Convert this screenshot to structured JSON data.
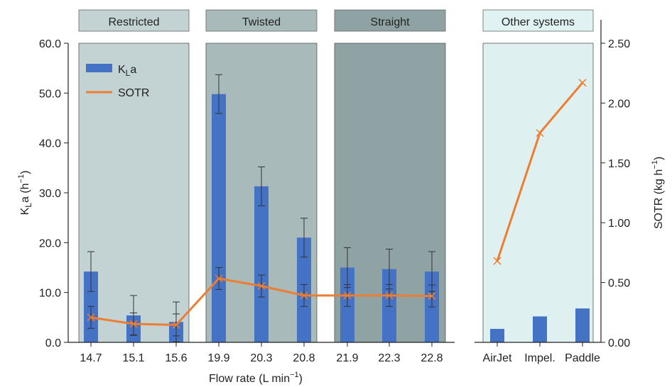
{
  "chart_data": {
    "type": "bar",
    "xlabel_main": "Flow rate",
    "xlabel_unit": "(L min",
    "xlabel_exp": "−1",
    "xlabel_close": ")",
    "ylabel_left_main": "K",
    "ylabel_left_sub": "L",
    "ylabel_left_rest": "a (h",
    "ylabel_left_exp": "−1",
    "ylabel_left_close": ")",
    "ylabel_right_main": "SOTR (kg h",
    "ylabel_right_exp": "−1",
    "ylabel_right_close": ")",
    "ylim_left": [
      0,
      60
    ],
    "ylim_right": [
      0,
      2.5
    ],
    "left_ticks": [
      "0.0",
      "10.0",
      "20.0",
      "30.0",
      "40.0",
      "50.0",
      "60.0"
    ],
    "right_ticks": [
      "0.00",
      "0.50",
      "1.00",
      "1.50",
      "2.00",
      "2.50"
    ],
    "legend": {
      "placement": "top-left",
      "kla_main": "K",
      "kla_sub": "L",
      "kla_rest": "a",
      "sotr": "SOTR"
    },
    "colors": {
      "bar": "#4472c4",
      "line": "#ed7d31",
      "restricted_bg": "#c3d3d3",
      "twisted_bg": "#a8baba",
      "straight_bg": "#8fa3a5",
      "other_bg": "#def0ef",
      "other_header": "#e0f2f1"
    },
    "groups": [
      {
        "label": "Restricted",
        "categories": [
          "14.7",
          "15.1",
          "15.6"
        ],
        "kla": [
          14.2,
          5.4,
          4.1
        ],
        "kla_err": [
          4.0,
          4.0,
          4.0
        ],
        "sotr_on_left_axis": [
          5.0,
          3.7,
          3.5
        ],
        "sotr_err_left_axis": [
          2.2,
          2.2,
          2.2
        ]
      },
      {
        "label": "Twisted",
        "categories": [
          "19.9",
          "20.3",
          "20.8"
        ],
        "kla": [
          49.8,
          31.3,
          21.0
        ],
        "kla_err": [
          3.9,
          3.9,
          3.9
        ],
        "sotr_on_left_axis": [
          12.8,
          11.3,
          9.4
        ],
        "sotr_err_left_axis": [
          2.2,
          2.2,
          2.2
        ]
      },
      {
        "label": "Straight",
        "categories": [
          "21.9",
          "22.3",
          "22.8"
        ],
        "kla": [
          15.0,
          14.7,
          14.2
        ],
        "kla_err": [
          4.0,
          4.0,
          4.0
        ],
        "sotr_on_left_axis": [
          9.4,
          9.4,
          9.3
        ],
        "sotr_err_left_axis": [
          2.2,
          2.2,
          2.2
        ]
      }
    ],
    "other": {
      "label": "Other systems",
      "categories": [
        "AirJet",
        "Impel.",
        "Paddle"
      ],
      "sotr": [
        0.68,
        1.75,
        2.17
      ],
      "bars_left_axis": [
        2.7,
        5.2,
        6.8
      ]
    }
  }
}
